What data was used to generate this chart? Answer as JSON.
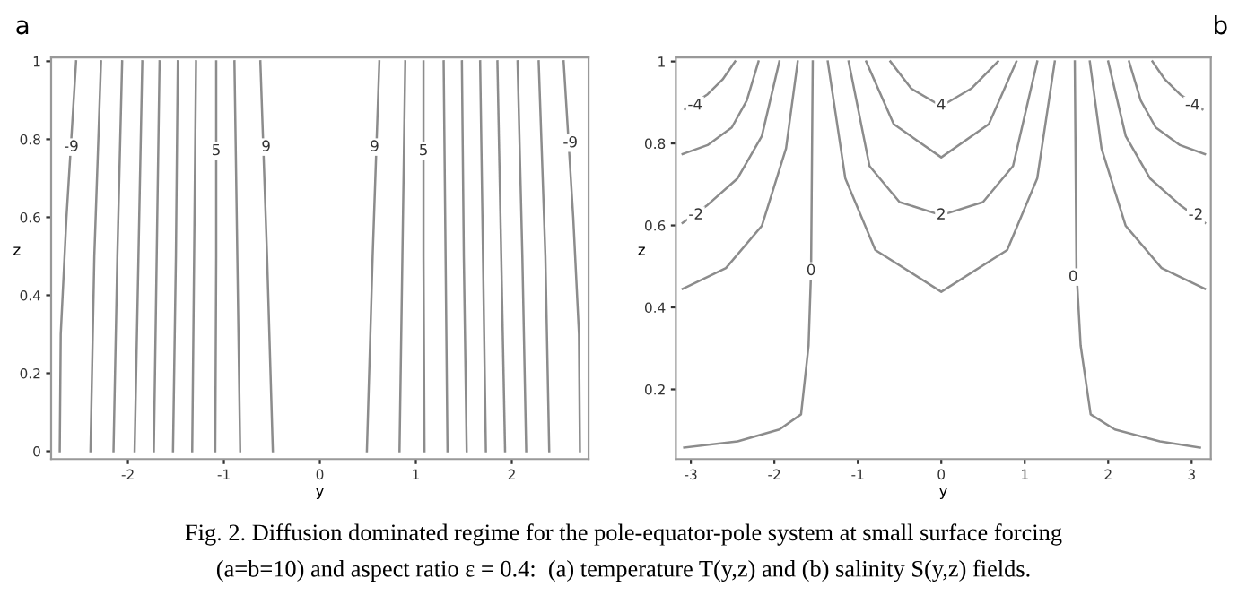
{
  "chart_data": [
    {
      "type": "line",
      "title": "a",
      "xlabel": "y",
      "ylabel": "z",
      "xlim": [
        -2.8,
        2.8
      ],
      "ylim": [
        -0.02,
        1.01
      ],
      "xticks": [
        -2,
        -1,
        0,
        1,
        2
      ],
      "yticks": [
        0,
        0.2,
        0.4,
        0.6,
        0.8,
        1
      ],
      "grid": false,
      "legend": false,
      "marker": "none",
      "line_style": "solid",
      "series": [
        {
          "color": "#8c8c8c",
          "x": [
            -2.71,
            -2.7,
            -2.64,
            -2.54
          ],
          "values": [
            0,
            0.3,
            0.6,
            1
          ]
        },
        {
          "color": "#8c8c8c",
          "x": [
            -2.39,
            -2.35,
            -2.28
          ],
          "values": [
            0,
            0.5,
            1
          ]
        },
        {
          "color": "#8c8c8c",
          "x": [
            -2.15,
            -2.11,
            -2.06
          ],
          "values": [
            0,
            0.5,
            1
          ]
        },
        {
          "color": "#8c8c8c",
          "x": [
            -1.93,
            -1.89,
            -1.85
          ],
          "values": [
            0,
            0.5,
            1
          ]
        },
        {
          "color": "#8c8c8c",
          "x": [
            -1.73,
            -1.7,
            -1.67
          ],
          "values": [
            0,
            0.5,
            1
          ]
        },
        {
          "color": "#8c8c8c",
          "x": [
            -1.53,
            -1.5,
            -1.48
          ],
          "values": [
            0,
            0.5,
            1
          ]
        },
        {
          "color": "#8c8c8c",
          "x": [
            -1.33,
            -1.31,
            -1.29
          ],
          "values": [
            0,
            0.5,
            1
          ]
        },
        {
          "color": "#8c8c8c",
          "x": [
            -1.09,
            -1.08,
            -1.08
          ],
          "values": [
            0,
            0.5,
            1
          ]
        },
        {
          "color": "#8c8c8c",
          "x": [
            -0.83,
            -0.86,
            -0.89
          ],
          "values": [
            0,
            0.5,
            1
          ]
        },
        {
          "color": "#8c8c8c",
          "x": [
            -0.49,
            -0.55,
            -0.62
          ],
          "values": [
            0,
            0.5,
            1
          ]
        },
        {
          "color": "#8c8c8c",
          "x": [
            0.49,
            0.55,
            0.62
          ],
          "values": [
            0,
            0.5,
            1
          ]
        },
        {
          "color": "#8c8c8c",
          "x": [
            0.83,
            0.86,
            0.89
          ],
          "values": [
            0,
            0.5,
            1
          ]
        },
        {
          "color": "#8c8c8c",
          "x": [
            1.09,
            1.08,
            1.08
          ],
          "values": [
            0,
            0.5,
            1
          ]
        },
        {
          "color": "#8c8c8c",
          "x": [
            1.33,
            1.31,
            1.29
          ],
          "values": [
            0,
            0.5,
            1
          ]
        },
        {
          "color": "#8c8c8c",
          "x": [
            1.53,
            1.5,
            1.48
          ],
          "values": [
            0,
            0.5,
            1
          ]
        },
        {
          "color": "#8c8c8c",
          "x": [
            1.73,
            1.7,
            1.67
          ],
          "values": [
            0,
            0.5,
            1
          ]
        },
        {
          "color": "#8c8c8c",
          "x": [
            1.93,
            1.89,
            1.85
          ],
          "values": [
            0,
            0.5,
            1
          ]
        },
        {
          "color": "#8c8c8c",
          "x": [
            2.15,
            2.11,
            2.06
          ],
          "values": [
            0,
            0.5,
            1
          ]
        },
        {
          "color": "#8c8c8c",
          "x": [
            2.39,
            2.35,
            2.28
          ],
          "values": [
            0,
            0.5,
            1
          ]
        },
        {
          "color": "#8c8c8c",
          "x": [
            2.71,
            2.7,
            2.64,
            2.54
          ],
          "values": [
            0,
            0.3,
            0.6,
            1
          ]
        }
      ],
      "annotations": [
        {
          "text": "-9",
          "x": -2.59,
          "y": 0.78
        },
        {
          "text": "5",
          "x": -1.08,
          "y": 0.77
        },
        {
          "text": "9",
          "x": -0.56,
          "y": 0.78
        },
        {
          "text": "9",
          "x": 0.57,
          "y": 0.78
        },
        {
          "text": "5",
          "x": 1.08,
          "y": 0.77
        },
        {
          "text": "-9",
          "x": 2.61,
          "y": 0.79
        },
        "Fig. 2. Diffusion dominated regime for the pole-equator-pole system at small surface forcing",
        "(a=b=10) and aspect ratio ε = 0.4:  (a) temperature T(y,z) and (b) salinity S(y,z) fields."
      ]
    },
    {
      "type": "line",
      "title": "b",
      "xlabel": "y",
      "ylabel": "z",
      "xlim": [
        -3.18,
        3.23
      ],
      "ylim": [
        0.03,
        1.01
      ],
      "xticks": [
        -3,
        -2,
        -1,
        0,
        1,
        2,
        3
      ],
      "yticks": [
        0.2,
        0.4,
        0.6,
        0.8,
        1
      ],
      "grid": false,
      "legend": false,
      "marker": "none",
      "line_style": "solid",
      "series": [
        {
          "color": "#8c8c8c",
          "x": [
            -3.07,
            -2.8,
            -2.62,
            -2.47
          ],
          "values": [
            0.883,
            0.92,
            0.956,
            1.0
          ]
        },
        {
          "color": "#8c8c8c",
          "x": [
            -3.1,
            -2.8,
            -2.51,
            -2.33,
            -2.19
          ],
          "values": [
            0.774,
            0.796,
            0.839,
            0.905,
            1.0
          ]
        },
        {
          "color": "#8c8c8c",
          "x": [
            -3.1,
            -2.8,
            -2.44,
            -2.15,
            -1.94
          ],
          "values": [
            0.606,
            0.65,
            0.715,
            0.818,
            1.0
          ]
        },
        {
          "color": "#8c8c8c",
          "x": [
            -3.1,
            -2.58,
            -2.15,
            -1.86,
            -1.72
          ],
          "values": [
            0.445,
            0.496,
            0.599,
            0.788,
            1.0
          ]
        },
        {
          "color": "#8c8c8c",
          "x": [
            -3.08,
            -2.44,
            -1.94,
            -1.68,
            -1.59,
            -1.56,
            -1.54
          ],
          "values": [
            0.058,
            0.073,
            0.102,
            0.139,
            0.307,
            0.489,
            1.0
          ]
        },
        {
          "color": "#8c8c8c",
          "x": [
            -0.61,
            -0.36,
            0,
            0.36,
            0.68
          ],
          "values": [
            1.0,
            0.934,
            0.891,
            0.934,
            1.0
          ]
        },
        {
          "color": "#8c8c8c",
          "x": [
            -0.9,
            -0.57,
            0,
            0.57,
            0.9
          ],
          "values": [
            1.0,
            0.847,
            0.766,
            0.847,
            1.0
          ]
        },
        {
          "color": "#8c8c8c",
          "x": [
            -1.11,
            -0.86,
            -0.5,
            0,
            0.5,
            0.86,
            1.15
          ],
          "values": [
            1.0,
            0.745,
            0.657,
            0.625,
            0.657,
            0.745,
            1.0
          ]
        },
        {
          "color": "#8c8c8c",
          "x": [
            -1.36,
            -1.15,
            -0.79,
            0,
            0.79,
            1.15,
            1.36
          ],
          "values": [
            1.0,
            0.715,
            0.54,
            0.438,
            0.54,
            0.715,
            1.0
          ]
        },
        {
          "color": "#8c8c8c",
          "x": [
            3.1,
            2.62,
            2.08,
            1.79,
            1.67,
            1.62,
            1.6
          ],
          "values": [
            0.058,
            0.073,
            0.102,
            0.139,
            0.307,
            0.489,
            1.0
          ]
        },
        {
          "color": "#8c8c8c",
          "x": [
            3.16,
            2.64,
            2.21,
            1.92,
            1.78
          ],
          "values": [
            0.445,
            0.496,
            0.599,
            0.788,
            1.0
          ]
        },
        {
          "color": "#8c8c8c",
          "x": [
            3.16,
            2.86,
            2.5,
            2.21,
            2.0
          ],
          "values": [
            0.606,
            0.65,
            0.715,
            0.818,
            1.0
          ]
        },
        {
          "color": "#8c8c8c",
          "x": [
            3.16,
            2.86,
            2.57,
            2.39,
            2.25
          ],
          "values": [
            0.774,
            0.796,
            0.839,
            0.905,
            1.0
          ]
        },
        {
          "color": "#8c8c8c",
          "x": [
            3.13,
            2.86,
            2.68,
            2.53
          ],
          "values": [
            0.883,
            0.92,
            0.956,
            1.0
          ]
        }
      ],
      "annotations": [
        {
          "text": "-4",
          "x": -2.95,
          "y": 0.893
        },
        {
          "text": "4",
          "x": 0,
          "y": 0.893
        },
        {
          "text": "-4",
          "x": 3.01,
          "y": 0.893
        },
        {
          "text": "-2",
          "x": -2.94,
          "y": 0.625
        },
        {
          "text": "2",
          "x": 0,
          "y": 0.625
        },
        {
          "text": "-2",
          "x": 3.05,
          "y": 0.625
        },
        {
          "text": "0",
          "x": -1.56,
          "y": 0.489
        },
        {
          "text": "0",
          "x": 1.58,
          "y": 0.474
        }
      ]
    }
  ]
}
